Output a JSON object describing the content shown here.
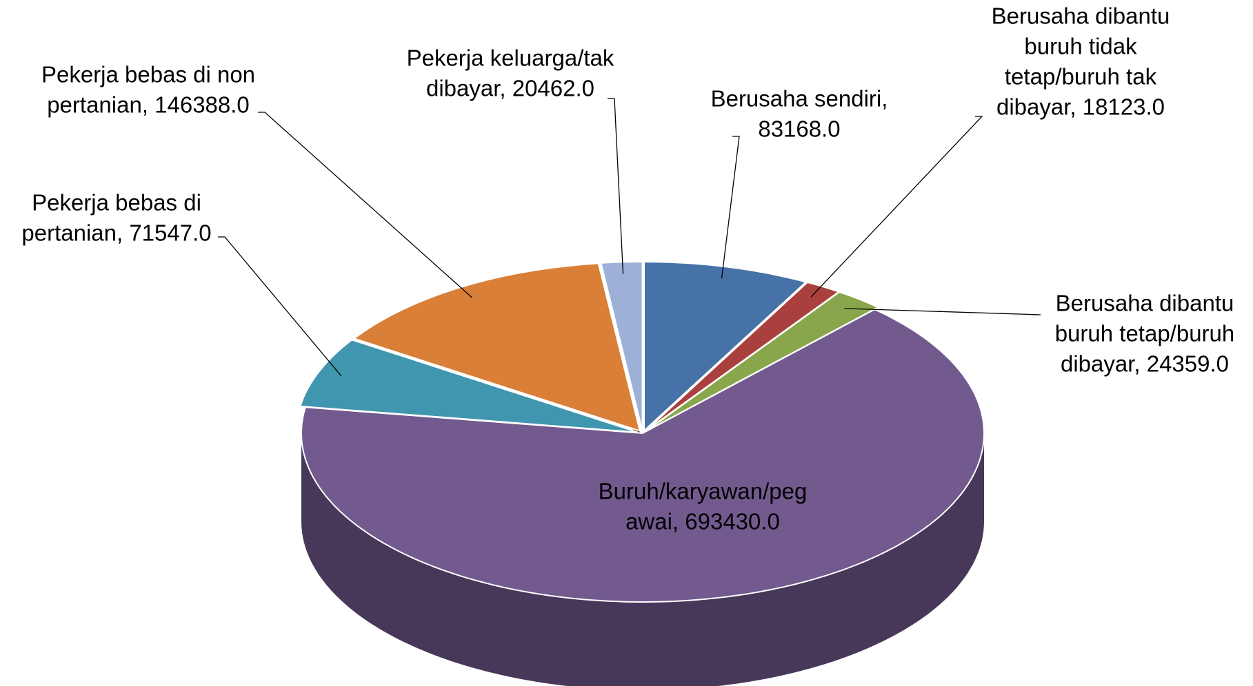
{
  "chart_data": {
    "type": "pie3d",
    "values": [
      83168,
      18123,
      24359,
      693430,
      71547,
      146388,
      20462
    ],
    "value_labels": [
      [
        "Berusaha sendiri,",
        "83168.0"
      ],
      [
        "Berusaha dibantu",
        "buruh tidak",
        "tetap/buruh tak",
        "dibayar, 18123.0"
      ],
      [
        "Berusaha dibantu",
        "buruh tetap/buruh",
        "dibayar, 24359.0"
      ],
      [
        "Buruh/karyawan/peg",
        "awai, 693430.0"
      ],
      [
        "Pekerja bebas di",
        "pertanian, 71547.0"
      ],
      [
        "Pekerja bebas di non",
        "pertanian, 146388.0"
      ],
      [
        "Pekerja keluarga/tak",
        "dibayar, 20462.0"
      ]
    ],
    "colors": [
      "#4672a8",
      "#aa403e",
      "#89a64c",
      "#725a8f",
      "#4096ae",
      "#d97f38",
      "#9db0d8"
    ]
  }
}
